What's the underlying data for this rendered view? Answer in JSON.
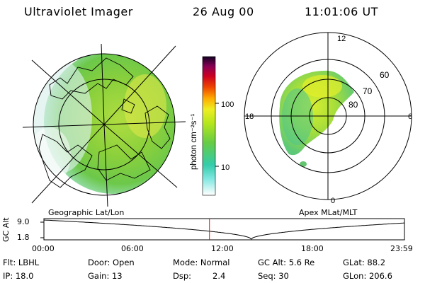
{
  "header": {
    "instrument": "Ultraviolet Imager",
    "date": "26 Aug 00",
    "time": "11:01:06 UT"
  },
  "colorbar": {
    "unit_label": "photon cm⁻²s⁻¹",
    "ticks": [
      {
        "value": 100,
        "label": "100"
      },
      {
        "value": 10,
        "label": "10"
      }
    ],
    "scale": "log"
  },
  "panels": {
    "left_caption": "Geographic Lat/Lon",
    "right_caption": "Apex MLat/MLT"
  },
  "polar_plot": {
    "mlt_labels": [
      "12",
      "18",
      "6",
      "0"
    ],
    "mlat_labels": [
      "60",
      "70",
      "80"
    ]
  },
  "altitude_plot": {
    "ylabel": "GC Alt",
    "ytick_top": "9.0",
    "ytick_bottom": "1.8",
    "time_labels": [
      "00:00",
      "06:00",
      "12:00",
      "18:00",
      "23:59"
    ],
    "current_time_marker_hours": 11.02
  },
  "status": {
    "flt": "Flt: LBHL",
    "ip": "IP: 18.0",
    "door": "Door: Open",
    "gain": "Gain: 13",
    "mode": "Mode: Normal",
    "dsp_label": "Dsp:",
    "dsp_value": "2.4",
    "gc_alt": "GC Alt: 5.6 Re",
    "seq": "Seq: 30",
    "glat": "GLat:  88.2",
    "glon": "GLon: 206.6"
  },
  "colors": {
    "marker": "#ff0000",
    "colorbar_stops": [
      "#ffffff",
      "#40e0d0",
      "#66cc44",
      "#b5e61d",
      "#eeee22",
      "#ff9900",
      "#dd0000",
      "#880044",
      "#000022"
    ]
  }
}
